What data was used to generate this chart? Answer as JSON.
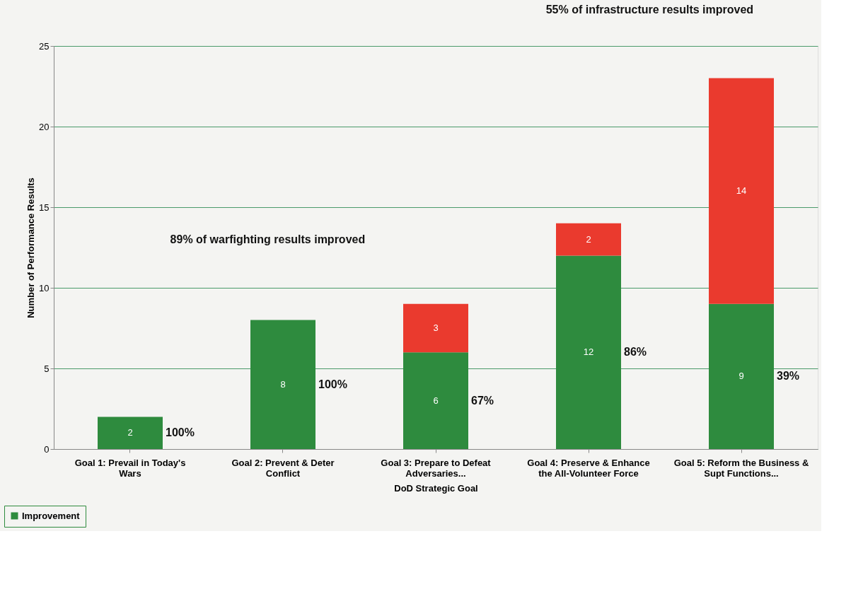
{
  "chart_data": {
    "type": "bar",
    "stacked": true,
    "categories": [
      "Goal 1: Prevail in Today's Wars",
      "Goal 2: Prevent & Deter Conflict",
      "Goal 3: Prepare to Defeat Adversaries...",
      "Goal 4: Preserve & Enhance the All-Volunteer Force",
      "Goal 5: Reform the Business & Supt Functions..."
    ],
    "series": [
      {
        "name": "Improvement",
        "color": "#2e8b3e",
        "values": [
          2,
          8,
          6,
          12,
          9
        ]
      },
      {
        "color": "#ea3a2e",
        "values": [
          null,
          null,
          3,
          2,
          14
        ]
      }
    ],
    "xlabel": "DoD Strategic Goal",
    "ylabel": "Number of Performance Results",
    "ylim": [
      0,
      25
    ],
    "yticks": [
      0,
      5,
      10,
      15,
      20,
      25
    ],
    "grid": "y",
    "data_labels": true,
    "legend": "bottom left",
    "annotations": [
      "100%",
      "100%",
      "67%",
      "86%",
      "39%",
      "89% of warfighting results  improved",
      "55% of infrastructure results  improved"
    ]
  }
}
